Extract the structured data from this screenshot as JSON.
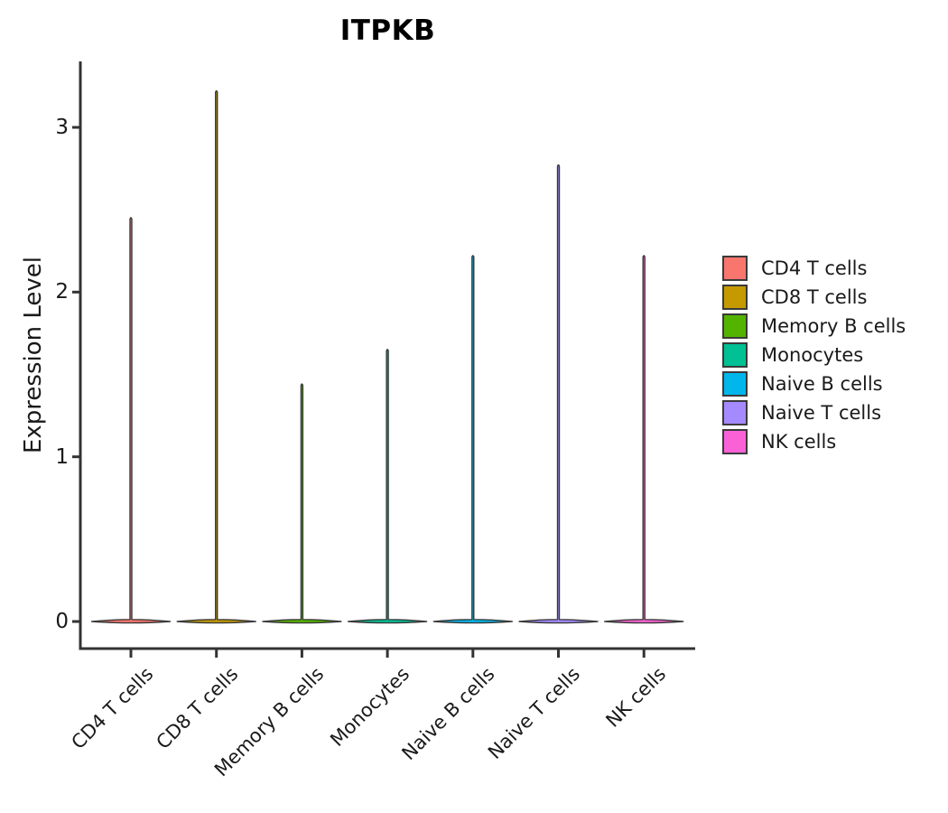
{
  "chart_data": {
    "type": "violin",
    "title": "ITPKB",
    "xlabel": "",
    "ylabel": "Expression Level",
    "categories": [
      "CD4 T cells",
      "CD8 T cells",
      "Memory B cells",
      "Monocytes",
      "Naive B cells",
      "Naive T cells",
      "NK cells"
    ],
    "series": [
      {
        "name": "CD4 T cells",
        "max_expression": 2.46,
        "density_peak_at": 0
      },
      {
        "name": "CD8 T cells",
        "max_expression": 3.23,
        "density_peak_at": 0
      },
      {
        "name": "Memory B cells",
        "max_expression": 1.45,
        "density_peak_at": 0
      },
      {
        "name": "Monocytes",
        "max_expression": 1.66,
        "density_peak_at": 0
      },
      {
        "name": "Naive B cells",
        "max_expression": 2.23,
        "density_peak_at": 0
      },
      {
        "name": "Naive T cells",
        "max_expression": 2.78,
        "density_peak_at": 0
      },
      {
        "name": "NK cells",
        "max_expression": 2.23,
        "density_peak_at": 0
      }
    ],
    "yticks": [
      0,
      1,
      2,
      3
    ],
    "ylim": [
      -0.17,
      3.4
    ],
    "grid": false,
    "legend": {
      "position": "right",
      "entries": [
        {
          "label": "CD4 T cells",
          "color": "#F8766D"
        },
        {
          "label": "CD8 T cells",
          "color": "#C49A00"
        },
        {
          "label": "Memory B cells",
          "color": "#53B400"
        },
        {
          "label": "Monocytes",
          "color": "#00C094"
        },
        {
          "label": "Naive B cells",
          "color": "#00B6EB"
        },
        {
          "label": "Naive T cells",
          "color": "#A58AFF"
        },
        {
          "label": "NK cells",
          "color": "#FB61D7"
        }
      ]
    },
    "style": {
      "violin_outline_color": "#3A3A3A",
      "axis_color": "#333333",
      "text_color": "#1a1a1a",
      "background": "#ffffff"
    }
  }
}
